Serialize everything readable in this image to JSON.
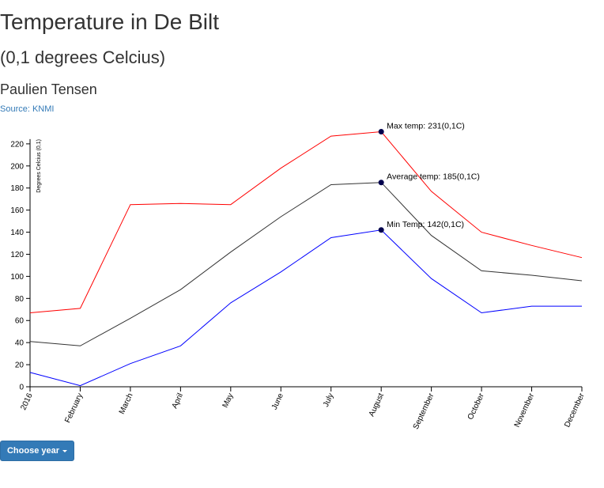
{
  "header": {
    "title": "Temperature in De Bilt",
    "subtitle": "(0,1 degrees Celcius)",
    "author": "Paulien Tensen",
    "source": "Source: KNMI"
  },
  "controls": {
    "choose_year_label": "Choose year",
    "caret_icon": "caret-down-icon"
  },
  "chart_data": {
    "type": "line",
    "categories": [
      "2016",
      "February",
      "March",
      "April",
      "May",
      "June",
      "July",
      "August",
      "September",
      "October",
      "November",
      "December"
    ],
    "ylabel": "Degrees Celcius (0,1)",
    "ylim": [
      0,
      230
    ],
    "yticks": [
      0,
      20,
      40,
      60,
      80,
      100,
      120,
      140,
      160,
      180,
      200,
      220
    ],
    "series": [
      {
        "key": "max",
        "color": "#ff0000",
        "values": [
          67,
          71,
          165,
          166,
          165,
          198,
          227,
          231,
          177,
          140,
          128,
          117
        ]
      },
      {
        "key": "avg",
        "color": "#333333",
        "values": [
          41,
          37,
          62,
          88,
          122,
          154,
          183,
          185,
          137,
          105,
          101,
          96
        ]
      },
      {
        "key": "min",
        "color": "#0000ff",
        "values": [
          13,
          1,
          21,
          37,
          76,
          104,
          135,
          142,
          98,
          67,
          73,
          73
        ]
      }
    ],
    "annotations": [
      {
        "series": "max",
        "index": 7,
        "text": "Max temp: 231(0,1C)"
      },
      {
        "series": "avg",
        "index": 7,
        "text": "Average temp: 185(0,1C)"
      },
      {
        "series": "min",
        "index": 7,
        "text": "Min Temp: 142(0,1C)"
      }
    ],
    "marker_color": "#00004d"
  }
}
